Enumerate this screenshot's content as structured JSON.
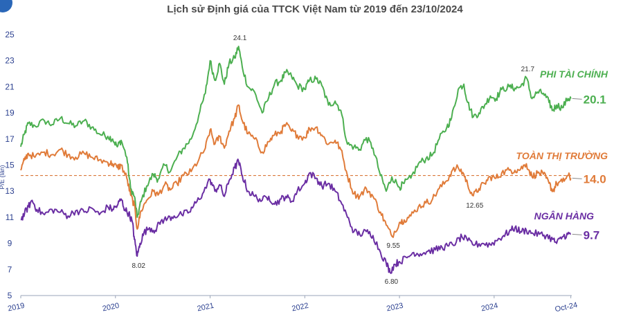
{
  "chart_data": {
    "type": "line",
    "title": "Lịch sử Định giá của TTCK Việt Nam từ 2019 đến 23/10/2024",
    "ylabel": "P/E (lần)",
    "xlabel": "",
    "ylim": [
      5,
      25
    ],
    "yticks": [
      5,
      7,
      9,
      11,
      13,
      15,
      17,
      19,
      21,
      23,
      25
    ],
    "xlim": [
      2019.0,
      2024.82
    ],
    "xticks": [
      {
        "x": 2019.0,
        "label": "2019"
      },
      {
        "x": 2020.0,
        "label": "2020"
      },
      {
        "x": 2021.0,
        "label": "2021"
      },
      {
        "x": 2022.0,
        "label": "2022"
      },
      {
        "x": 2023.0,
        "label": "2023"
      },
      {
        "x": 2024.0,
        "label": "2024"
      },
      {
        "x": 2024.81,
        "label": "Oct-24"
      }
    ],
    "grid": false,
    "reference_line": {
      "y": 14.2,
      "color": "#d9773a",
      "style": "dashed"
    },
    "series": [
      {
        "name": "PHI TÀI CHÍNH",
        "color": "#4caf50",
        "end_label": "20.1",
        "points": [
          [
            2019.0,
            16.4
          ],
          [
            2019.04,
            17.4
          ],
          [
            2019.08,
            18.2
          ],
          [
            2019.15,
            18.0
          ],
          [
            2019.25,
            18.4
          ],
          [
            2019.33,
            18.1
          ],
          [
            2019.42,
            18.6
          ],
          [
            2019.5,
            18.2
          ],
          [
            2019.58,
            18.0
          ],
          [
            2019.67,
            18.4
          ],
          [
            2019.75,
            17.9
          ],
          [
            2019.83,
            17.4
          ],
          [
            2019.92,
            17.2
          ],
          [
            2019.97,
            17.0
          ],
          [
            2020.02,
            16.4
          ],
          [
            2020.06,
            16.9
          ],
          [
            2020.12,
            15.6
          ],
          [
            2020.16,
            13.2
          ],
          [
            2020.2,
            12.6
          ],
          [
            2020.23,
            11.0
          ],
          [
            2020.27,
            12.2
          ],
          [
            2020.33,
            13.4
          ],
          [
            2020.4,
            14.3
          ],
          [
            2020.45,
            13.9
          ],
          [
            2020.52,
            15.0
          ],
          [
            2020.58,
            14.5
          ],
          [
            2020.65,
            15.6
          ],
          [
            2020.72,
            16.3
          ],
          [
            2020.8,
            17.0
          ],
          [
            2020.88,
            18.8
          ],
          [
            2020.95,
            20.5
          ],
          [
            2021.0,
            23.0
          ],
          [
            2021.05,
            21.5
          ],
          [
            2021.1,
            22.8
          ],
          [
            2021.15,
            21.2
          ],
          [
            2021.2,
            22.8
          ],
          [
            2021.26,
            23.2
          ],
          [
            2021.3,
            24.1
          ],
          [
            2021.34,
            22.5
          ],
          [
            2021.4,
            21.0
          ],
          [
            2021.47,
            20.6
          ],
          [
            2021.55,
            19.0
          ],
          [
            2021.62,
            20.2
          ],
          [
            2021.68,
            21.2
          ],
          [
            2021.75,
            21.5
          ],
          [
            2021.8,
            22.1
          ],
          [
            2021.86,
            21.8
          ],
          [
            2021.92,
            21.1
          ],
          [
            2022.0,
            20.8
          ],
          [
            2022.05,
            21.5
          ],
          [
            2022.12,
            21.6
          ],
          [
            2022.18,
            21.1
          ],
          [
            2022.25,
            19.6
          ],
          [
            2022.32,
            19.9
          ],
          [
            2022.38,
            19.2
          ],
          [
            2022.45,
            16.6
          ],
          [
            2022.52,
            16.4
          ],
          [
            2022.58,
            16.2
          ],
          [
            2022.65,
            17.1
          ],
          [
            2022.72,
            16.3
          ],
          [
            2022.8,
            14.2
          ],
          [
            2022.86,
            13.0
          ],
          [
            2022.92,
            14.1
          ],
          [
            2023.0,
            13.3
          ],
          [
            2023.05,
            13.6
          ],
          [
            2023.12,
            14.0
          ],
          [
            2023.2,
            15.1
          ],
          [
            2023.28,
            15.5
          ],
          [
            2023.35,
            15.8
          ],
          [
            2023.42,
            17.0
          ],
          [
            2023.5,
            17.9
          ],
          [
            2023.55,
            18.6
          ],
          [
            2023.62,
            20.8
          ],
          [
            2023.68,
            21.2
          ],
          [
            2023.72,
            19.8
          ],
          [
            2023.78,
            18.7
          ],
          [
            2023.84,
            19.0
          ],
          [
            2023.9,
            19.6
          ],
          [
            2023.96,
            20.3
          ],
          [
            2024.02,
            20.1
          ],
          [
            2024.08,
            20.8
          ],
          [
            2024.16,
            21.0
          ],
          [
            2024.22,
            20.9
          ],
          [
            2024.28,
            21.0
          ],
          [
            2024.34,
            21.7
          ],
          [
            2024.4,
            20.1
          ],
          [
            2024.46,
            20.6
          ],
          [
            2024.52,
            20.5
          ],
          [
            2024.58,
            19.8
          ],
          [
            2024.62,
            19.2
          ],
          [
            2024.66,
            19.6
          ],
          [
            2024.72,
            19.4
          ],
          [
            2024.78,
            20.1
          ],
          [
            2024.81,
            20.1
          ]
        ]
      },
      {
        "name": "TOÀN THỊ TRƯỜNG",
        "color": "#e07b39",
        "end_label": "14.0",
        "points": [
          [
            2019.0,
            14.6
          ],
          [
            2019.04,
            15.4
          ],
          [
            2019.08,
            15.9
          ],
          [
            2019.15,
            15.6
          ],
          [
            2019.25,
            16.0
          ],
          [
            2019.33,
            15.8
          ],
          [
            2019.42,
            16.2
          ],
          [
            2019.5,
            15.8
          ],
          [
            2019.58,
            15.6
          ],
          [
            2019.67,
            15.9
          ],
          [
            2019.75,
            15.6
          ],
          [
            2019.83,
            15.4
          ],
          [
            2019.92,
            15.2
          ],
          [
            2019.97,
            15.1
          ],
          [
            2020.02,
            14.8
          ],
          [
            2020.06,
            15.0
          ],
          [
            2020.12,
            14.0
          ],
          [
            2020.16,
            12.7
          ],
          [
            2020.2,
            11.9
          ],
          [
            2020.23,
            10.1
          ],
          [
            2020.27,
            11.5
          ],
          [
            2020.33,
            12.3
          ],
          [
            2020.4,
            13.0
          ],
          [
            2020.45,
            12.7
          ],
          [
            2020.52,
            13.5
          ],
          [
            2020.58,
            13.1
          ],
          [
            2020.65,
            13.6
          ],
          [
            2020.72,
            14.2
          ],
          [
            2020.8,
            14.5
          ],
          [
            2020.88,
            15.4
          ],
          [
            2020.95,
            16.3
          ],
          [
            2021.0,
            17.7
          ],
          [
            2021.05,
            16.6
          ],
          [
            2021.1,
            17.2
          ],
          [
            2021.15,
            16.3
          ],
          [
            2021.2,
            17.6
          ],
          [
            2021.26,
            18.6
          ],
          [
            2021.3,
            19.6
          ],
          [
            2021.34,
            18.4
          ],
          [
            2021.4,
            17.4
          ],
          [
            2021.47,
            17.0
          ],
          [
            2021.55,
            16.0
          ],
          [
            2021.62,
            16.8
          ],
          [
            2021.68,
            17.3
          ],
          [
            2021.75,
            17.6
          ],
          [
            2021.8,
            18.1
          ],
          [
            2021.86,
            17.6
          ],
          [
            2021.92,
            17.3
          ],
          [
            2022.0,
            17.1
          ],
          [
            2022.05,
            17.8
          ],
          [
            2022.12,
            17.9
          ],
          [
            2022.18,
            17.3
          ],
          [
            2022.25,
            16.6
          ],
          [
            2022.32,
            16.9
          ],
          [
            2022.38,
            16.2
          ],
          [
            2022.45,
            14.2
          ],
          [
            2022.52,
            12.8
          ],
          [
            2022.58,
            12.6
          ],
          [
            2022.65,
            13.2
          ],
          [
            2022.72,
            12.6
          ],
          [
            2022.8,
            11.4
          ],
          [
            2022.86,
            10.4
          ],
          [
            2022.92,
            9.55
          ],
          [
            2023.0,
            10.6
          ],
          [
            2023.05,
            10.8
          ],
          [
            2023.12,
            11.1
          ],
          [
            2023.2,
            11.8
          ],
          [
            2023.28,
            12.1
          ],
          [
            2023.35,
            12.4
          ],
          [
            2023.42,
            13.2
          ],
          [
            2023.5,
            13.8
          ],
          [
            2023.55,
            14.5
          ],
          [
            2023.62,
            14.8
          ],
          [
            2023.68,
            14.3
          ],
          [
            2023.72,
            13.5
          ],
          [
            2023.78,
            12.65
          ],
          [
            2023.84,
            13.2
          ],
          [
            2023.9,
            13.6
          ],
          [
            2023.96,
            14.1
          ],
          [
            2024.02,
            14.0
          ],
          [
            2024.08,
            14.4
          ],
          [
            2024.16,
            14.6
          ],
          [
            2024.22,
            14.6
          ],
          [
            2024.28,
            14.7
          ],
          [
            2024.34,
            15.1
          ],
          [
            2024.4,
            14.1
          ],
          [
            2024.46,
            14.4
          ],
          [
            2024.52,
            14.3
          ],
          [
            2024.58,
            13.6
          ],
          [
            2024.62,
            13.0
          ],
          [
            2024.66,
            13.6
          ],
          [
            2024.72,
            13.7
          ],
          [
            2024.78,
            14.2
          ],
          [
            2024.81,
            14.0
          ]
        ]
      },
      {
        "name": "NGÂN HÀNG",
        "color": "#6a2ea3",
        "end_label": "9.7",
        "points": [
          [
            2019.0,
            10.8
          ],
          [
            2019.04,
            11.3
          ],
          [
            2019.08,
            11.8
          ],
          [
            2019.12,
            12.3
          ],
          [
            2019.17,
            11.6
          ],
          [
            2019.25,
            11.2
          ],
          [
            2019.33,
            11.6
          ],
          [
            2019.42,
            11.4
          ],
          [
            2019.5,
            11.1
          ],
          [
            2019.58,
            11.5
          ],
          [
            2019.67,
            11.4
          ],
          [
            2019.75,
            11.7
          ],
          [
            2019.83,
            11.2
          ],
          [
            2019.92,
            11.8
          ],
          [
            2019.97,
            11.6
          ],
          [
            2020.02,
            11.9
          ],
          [
            2020.06,
            12.4
          ],
          [
            2020.1,
            11.6
          ],
          [
            2020.14,
            11.3
          ],
          [
            2020.18,
            10.6
          ],
          [
            2020.2,
            9.3
          ],
          [
            2020.23,
            8.02
          ],
          [
            2020.26,
            9.0
          ],
          [
            2020.3,
            9.8
          ],
          [
            2020.36,
            10.2
          ],
          [
            2020.42,
            10.0
          ],
          [
            2020.48,
            10.7
          ],
          [
            2020.55,
            10.9
          ],
          [
            2020.62,
            11.1
          ],
          [
            2020.7,
            11.2
          ],
          [
            2020.78,
            11.4
          ],
          [
            2020.85,
            12.1
          ],
          [
            2020.92,
            12.8
          ],
          [
            2021.0,
            13.9
          ],
          [
            2021.05,
            13.0
          ],
          [
            2021.1,
            13.5
          ],
          [
            2021.15,
            12.6
          ],
          [
            2021.2,
            13.8
          ],
          [
            2021.26,
            14.8
          ],
          [
            2021.3,
            15.3
          ],
          [
            2021.34,
            14.2
          ],
          [
            2021.4,
            13.0
          ],
          [
            2021.47,
            12.6
          ],
          [
            2021.55,
            12.3
          ],
          [
            2021.62,
            12.6
          ],
          [
            2021.68,
            12.0
          ],
          [
            2021.75,
            12.4
          ],
          [
            2021.8,
            12.6
          ],
          [
            2021.86,
            12.2
          ],
          [
            2021.92,
            13.0
          ],
          [
            2022.0,
            13.6
          ],
          [
            2022.05,
            14.4
          ],
          [
            2022.12,
            14.0
          ],
          [
            2022.18,
            13.4
          ],
          [
            2022.25,
            13.6
          ],
          [
            2022.32,
            13.0
          ],
          [
            2022.38,
            12.2
          ],
          [
            2022.45,
            11.0
          ],
          [
            2022.52,
            9.9
          ],
          [
            2022.58,
            9.7
          ],
          [
            2022.65,
            9.9
          ],
          [
            2022.72,
            9.6
          ],
          [
            2022.8,
            8.3
          ],
          [
            2022.86,
            7.5
          ],
          [
            2022.9,
            6.8
          ],
          [
            2022.95,
            7.4
          ],
          [
            2023.0,
            7.6
          ],
          [
            2023.08,
            7.9
          ],
          [
            2023.15,
            8.3
          ],
          [
            2023.22,
            8.2
          ],
          [
            2023.3,
            8.4
          ],
          [
            2023.38,
            8.5
          ],
          [
            2023.45,
            8.7
          ],
          [
            2023.52,
            8.8
          ],
          [
            2023.6,
            9.1
          ],
          [
            2023.66,
            9.5
          ],
          [
            2023.72,
            9.2
          ],
          [
            2023.8,
            8.9
          ],
          [
            2023.88,
            9.0
          ],
          [
            2023.96,
            8.9
          ],
          [
            2024.02,
            9.2
          ],
          [
            2024.1,
            9.6
          ],
          [
            2024.16,
            9.9
          ],
          [
            2024.22,
            10.2
          ],
          [
            2024.28,
            9.9
          ],
          [
            2024.34,
            10.0
          ],
          [
            2024.4,
            9.8
          ],
          [
            2024.48,
            9.7
          ],
          [
            2024.55,
            9.6
          ],
          [
            2024.62,
            9.3
          ],
          [
            2024.66,
            9.0
          ],
          [
            2024.72,
            9.5
          ],
          [
            2024.78,
            9.7
          ],
          [
            2024.81,
            9.7
          ]
        ]
      }
    ],
    "annotations": [
      {
        "text": "24.1",
        "x": 2021.3,
        "y": 24.1,
        "pos": "above"
      },
      {
        "text": "8.02",
        "x": 2020.23,
        "y": 8.02,
        "pos": "below"
      },
      {
        "text": "21.7",
        "x": 2024.34,
        "y": 21.7,
        "pos": "above"
      },
      {
        "text": "12.65",
        "x": 2023.78,
        "y": 12.65,
        "pos": "below"
      },
      {
        "text": "9.55",
        "x": 2022.92,
        "y": 9.55,
        "pos": "below"
      },
      {
        "text": "6.80",
        "x": 2022.9,
        "y": 6.8,
        "pos": "below"
      }
    ]
  }
}
